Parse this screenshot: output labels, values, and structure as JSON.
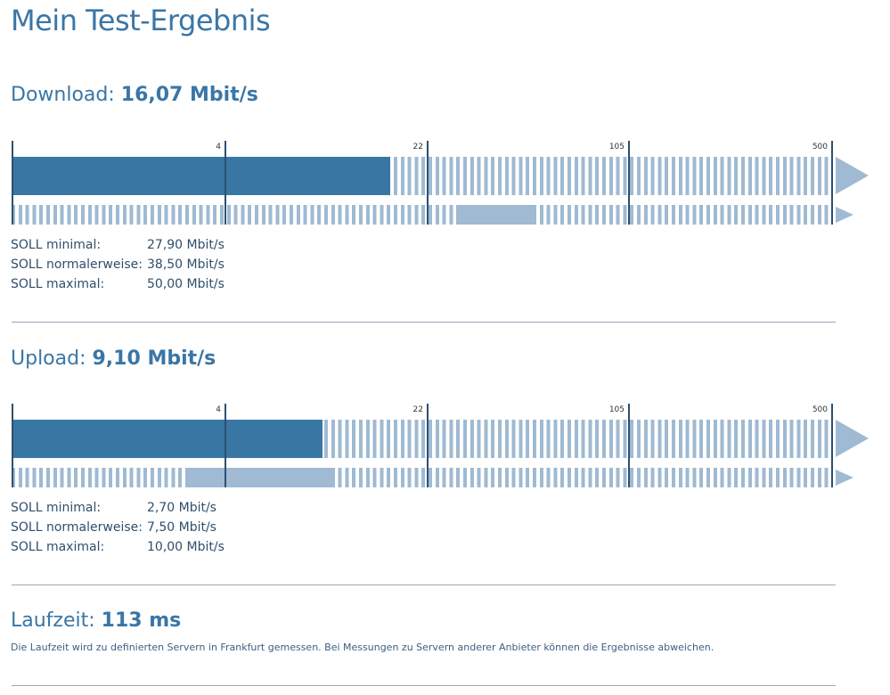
{
  "title": "Mein Test-Ergebnis",
  "scale_ticks": [
    0,
    4,
    22,
    105,
    500
  ],
  "scale_labels": [
    "4",
    "22",
    "105",
    "500"
  ],
  "download": {
    "label": "Download:",
    "value_text": "16,07 Mbit/s",
    "value": 16.07,
    "soll_min": 27.9,
    "soll_max": 50.0,
    "soll": [
      {
        "label": "SOLL minimal:",
        "value": "27,90 Mbit/s"
      },
      {
        "label": "SOLL normalerweise:",
        "value": "38,50 Mbit/s"
      },
      {
        "label": "SOLL maximal:",
        "value": "50,00 Mbit/s"
      }
    ]
  },
  "upload": {
    "label": "Upload:",
    "value_text": "9,10 Mbit/s",
    "value": 9.1,
    "soll_min": 2.7,
    "soll_max": 10.0,
    "soll": [
      {
        "label": "SOLL minimal:",
        "value": "2,70 Mbit/s"
      },
      {
        "label": "SOLL normalerweise:",
        "value": "7,50 Mbit/s"
      },
      {
        "label": "SOLL maximal:",
        "value": "10,00 Mbit/s"
      }
    ]
  },
  "latency": {
    "label": "Laufzeit:",
    "value_text": "113 ms",
    "note": "Die Laufzeit wird zu definierten Servern in Frankfurt gemessen. Bei Messungen zu Servern anderer Anbieter können die Ergebnisse abweichen."
  },
  "colors": {
    "accent": "#3877a4",
    "light": "#9fbad2",
    "heading": "#3a76a6"
  }
}
